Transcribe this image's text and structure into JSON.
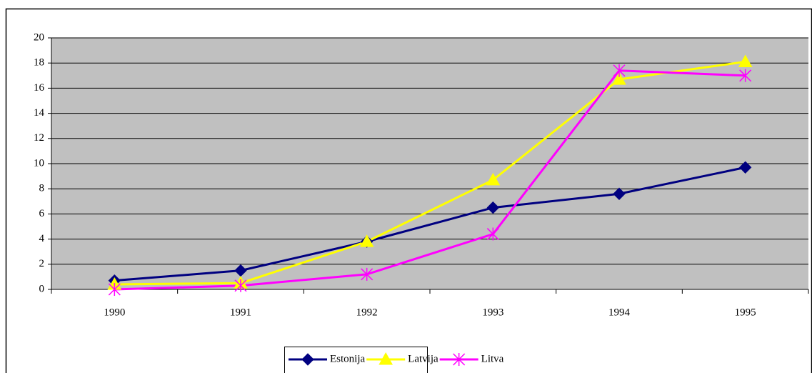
{
  "chart_data": {
    "type": "line",
    "categories": [
      "1990",
      "1991",
      "1992",
      "1993",
      "1994",
      "1995"
    ],
    "series": [
      {
        "name": "Estonija",
        "color": "#000080",
        "marker": "diamond",
        "values": [
          0.7,
          1.5,
          3.8,
          6.5,
          7.6,
          9.7
        ]
      },
      {
        "name": "Latvija",
        "color": "#ffff00",
        "marker": "triangle",
        "values": [
          0.4,
          0.5,
          3.8,
          8.7,
          16.7,
          18.1
        ]
      },
      {
        "name": "Litva",
        "color": "#ff00ff",
        "marker": "asterisk",
        "values": [
          0.0,
          0.3,
          1.2,
          4.4,
          17.4,
          17.0
        ]
      }
    ],
    "ylim": [
      0,
      20
    ],
    "yticks": [
      0,
      2,
      4,
      6,
      8,
      10,
      12,
      14,
      16,
      18,
      20
    ],
    "grid": true,
    "legend": "bottom",
    "plot_background": "#c0c0c0"
  }
}
